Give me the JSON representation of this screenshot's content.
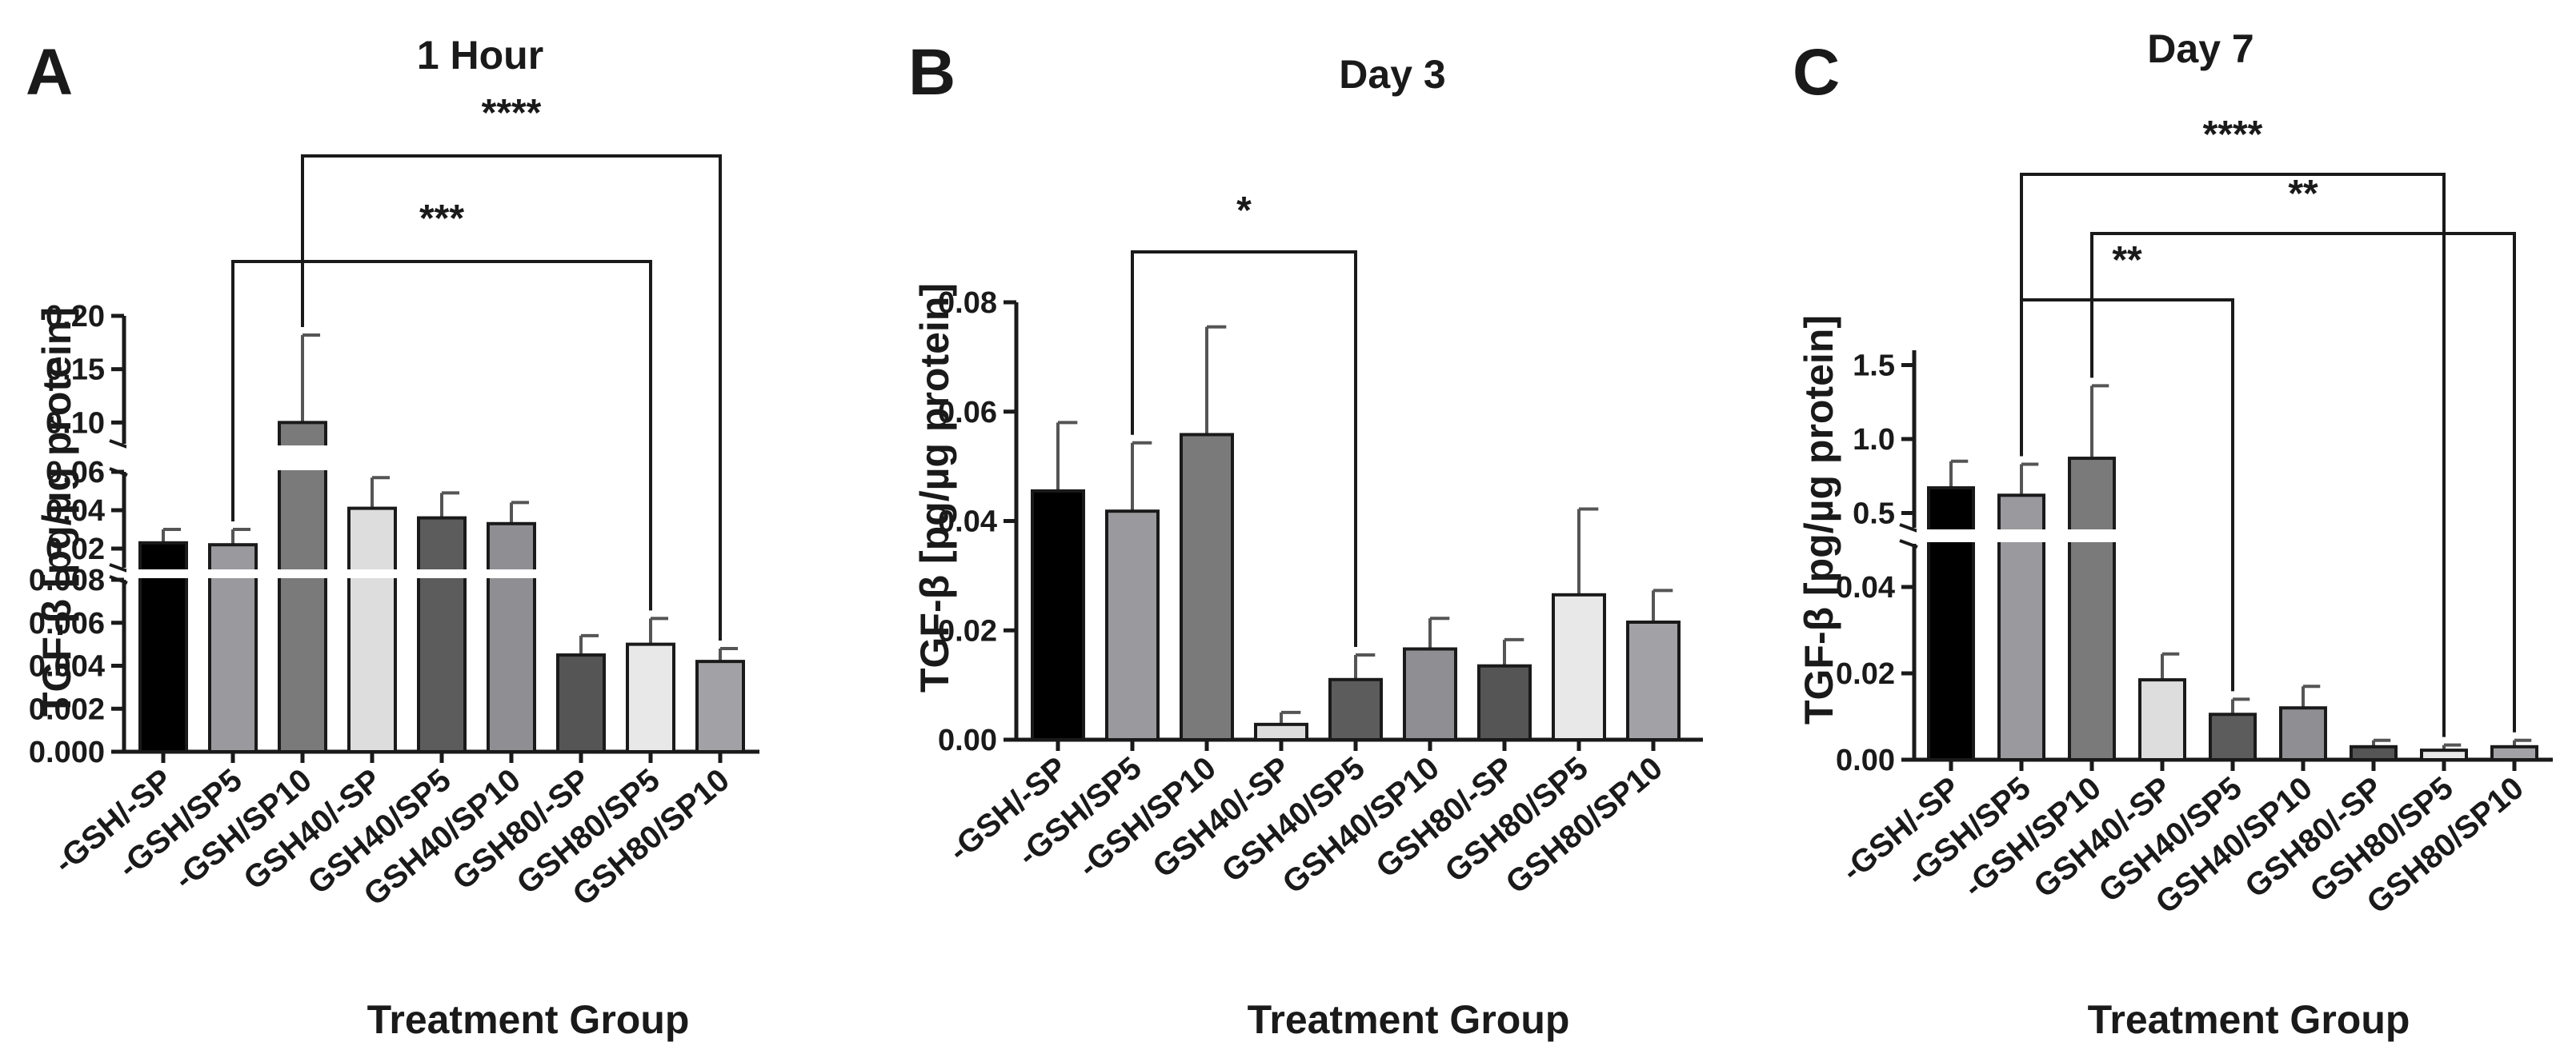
{
  "chart_data": [
    {
      "panel": "A",
      "type": "bar",
      "title": "1 Hour",
      "xlabel": "Treatment Group",
      "ylabel": "TGF-β [pg/µg protein]",
      "axis_break": true,
      "segments": [
        {
          "range": [
            0,
            0.008
          ],
          "ticks": [
            "0.000",
            "0.002",
            "0.004",
            "0.006",
            "0.008"
          ]
        },
        {
          "range": [
            0.01,
            0.06
          ],
          "ticks": [
            "0.02",
            "0.04",
            "0.06"
          ]
        },
        {
          "range": [
            0.08,
            0.2
          ],
          "ticks": [
            "0.10",
            "0.15",
            "0.20"
          ]
        }
      ],
      "categories": [
        "-GSH/-SP",
        "-GSH/SP5",
        "-GSH/SP10",
        "GSH40/-SP",
        "GSH40/SP5",
        "GSH40/SP10",
        "GSH80/-SP",
        "GSH80/SP5",
        "GSH80/SP10"
      ],
      "values": [
        0.023,
        0.022,
        0.1,
        0.041,
        0.036,
        0.033,
        0.0045,
        0.005,
        0.0042
      ],
      "errors": [
        0.007,
        0.008,
        0.082,
        0.016,
        0.013,
        0.011,
        0.0009,
        0.0012,
        0.0006
      ],
      "colors": [
        "#000000",
        "#9a9a9e",
        "#7a7a7a",
        "#dddddd",
        "#5c5c5c",
        "#8f8f93",
        "#555555",
        "#e8e8e8",
        "#a2a2a6"
      ],
      "significance": [
        {
          "from": 2,
          "to": 8,
          "label": "****"
        },
        {
          "from": 1,
          "to": 7,
          "label": "***"
        }
      ]
    },
    {
      "panel": "B",
      "type": "bar",
      "title": "Day 3",
      "xlabel": "Treatment Group",
      "ylabel": "TGF-β [pg/µg protein]",
      "axis_break": false,
      "ylim": [
        0,
        0.08
      ],
      "ticks": [
        "0.00",
        "0.02",
        "0.04",
        "0.06",
        "0.08"
      ],
      "categories": [
        "-GSH/-SP",
        "-GSH/SP5",
        "-GSH/SP10",
        "GSH40/-SP",
        "GSH40/SP5",
        "GSH40/SP10",
        "GSH80/-SP",
        "GSH80/SP5",
        "GSH80/SP10"
      ],
      "values": [
        0.0455,
        0.0418,
        0.0558,
        0.0028,
        0.011,
        0.0166,
        0.0135,
        0.0265,
        0.0215
      ],
      "errors": [
        0.0125,
        0.0125,
        0.0197,
        0.0022,
        0.0045,
        0.0056,
        0.0048,
        0.0157,
        0.0058
      ],
      "colors": [
        "#000000",
        "#9a9a9e",
        "#7a7a7a",
        "#dddddd",
        "#5c5c5c",
        "#8f8f93",
        "#555555",
        "#e8e8e8",
        "#a2a2a6"
      ],
      "significance": [
        {
          "from": 1,
          "to": 4,
          "label": "*"
        }
      ]
    },
    {
      "panel": "C",
      "type": "bar",
      "title": "Day 7",
      "xlabel": "Treatment Group",
      "ylabel": "TGF-β [pg/µg protein]",
      "axis_break": true,
      "segments": [
        {
          "range": [
            0,
            0.05
          ],
          "ticks": [
            "0.00",
            "0.02",
            "0.04"
          ]
        },
        {
          "range": [
            0.4,
            1.6
          ],
          "ticks": [
            "0.5",
            "1.0",
            "1.5"
          ]
        }
      ],
      "categories": [
        "-GSH/-SP",
        "-GSH/SP5",
        "-GSH/SP10",
        "GSH40/-SP",
        "GSH40/SP5",
        "GSH40/SP10",
        "GSH80/-SP",
        "GSH80/SP5",
        "GSH80/SP10"
      ],
      "values": [
        0.67,
        0.62,
        0.87,
        0.0185,
        0.0105,
        0.012,
        0.003,
        0.0022,
        0.003
      ],
      "errors": [
        0.18,
        0.21,
        0.49,
        0.006,
        0.0035,
        0.005,
        0.0015,
        0.0012,
        0.0015
      ],
      "colors": [
        "#000000",
        "#9a9a9e",
        "#7a7a7a",
        "#dddddd",
        "#5c5c5c",
        "#8f8f93",
        "#555555",
        "#e8e8e8",
        "#a2a2a6"
      ],
      "significance": [
        {
          "from": 1,
          "to": 7,
          "label": "****"
        },
        {
          "from": 2,
          "to": 8,
          "label": "**"
        },
        {
          "from": 1,
          "to": 4,
          "label": "**"
        }
      ]
    }
  ]
}
